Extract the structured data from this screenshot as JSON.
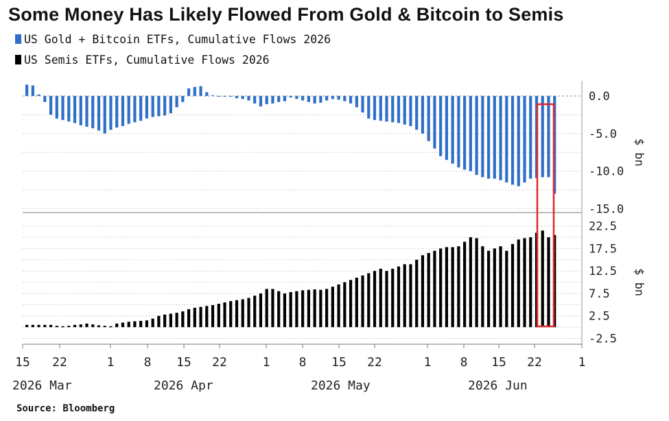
{
  "title": "Some Money Has Likely Flowed From Gold & Bitcoin to Semis",
  "legend": [
    {
      "label": "US Gold + Bitcoin ETFs, Cumulative Flows 2026",
      "color": "#2f6fc8"
    },
    {
      "label": "US Semis ETFs, Cumulative Flows 2026",
      "color": "#000000"
    }
  ],
  "source": "Source: Bloomberg",
  "colors": {
    "gold_btc": "#2f6fc8",
    "semis": "#000000",
    "highlight_box": "#e0262b",
    "grid": "#9a9a9a"
  },
  "chart_data": [
    {
      "type": "bar",
      "panel": "top",
      "series": [
        {
          "name": "US Gold + Bitcoin ETFs, Cumulative Flows 2026",
          "values": [
            1.5,
            1.4,
            0.2,
            -0.8,
            -2.5,
            -3.0,
            -3.2,
            -3.4,
            -3.6,
            -3.9,
            -4.1,
            -4.3,
            -4.6,
            -5.0,
            -4.5,
            -4.2,
            -4.0,
            -3.7,
            -3.5,
            -3.3,
            -3.0,
            -2.8,
            -2.7,
            -2.6,
            -2.3,
            -1.5,
            -0.8,
            1.0,
            1.2,
            1.3,
            0.5,
            0.1,
            -0.1,
            -0.1,
            -0.1,
            -0.3,
            -0.4,
            -0.6,
            -1.0,
            -1.4,
            -1.1,
            -1.0,
            -0.8,
            -0.7,
            -0.2,
            -0.4,
            -0.6,
            -0.8,
            -1.0,
            -0.9,
            -0.6,
            -0.4,
            -0.5,
            -0.7,
            -1.0,
            -1.5,
            -2.2,
            -3.0,
            -3.2,
            -3.3,
            -3.4,
            -3.5,
            -3.6,
            -3.8,
            -4.0,
            -4.5,
            -5.0,
            -6.0,
            -7.0,
            -8.0,
            -8.5,
            -9.0,
            -9.5,
            -9.8,
            -10.0,
            -10.5,
            -10.8,
            -11.0,
            -11.0,
            -11.2,
            -11.5,
            -11.8,
            -12.0,
            -11.5,
            -11.0,
            -10.9,
            -10.8,
            -10.8,
            -13.0
          ]
        }
      ],
      "ylim": [
        -15.5,
        2.0
      ],
      "yticks": [
        "0.0",
        "-5.0",
        "-10.0",
        "-15.0"
      ],
      "ylabel": "$ bn"
    },
    {
      "type": "bar",
      "panel": "bottom",
      "series": [
        {
          "name": "US Semis ETFs, Cumulative Flows 2026",
          "values": [
            0.5,
            0.5,
            0.5,
            0.5,
            0.5,
            0.3,
            0.2,
            0.3,
            0.5,
            0.6,
            0.8,
            0.6,
            0.4,
            0.3,
            0.2,
            0.8,
            1.0,
            1.2,
            1.3,
            1.4,
            1.5,
            1.9,
            2.5,
            2.8,
            3.0,
            3.2,
            3.5,
            4.0,
            4.3,
            4.5,
            4.7,
            4.9,
            5.2,
            5.5,
            5.8,
            6.0,
            6.2,
            6.5,
            7.0,
            7.5,
            8.5,
            8.5,
            8.0,
            7.5,
            7.8,
            8.0,
            8.2,
            8.3,
            8.4,
            8.3,
            8.5,
            9.0,
            9.5,
            10.0,
            10.5,
            11.0,
            11.5,
            12.0,
            12.5,
            13.0,
            12.5,
            13.0,
            13.5,
            14.0,
            14.0,
            15.0,
            16.0,
            16.5,
            17.0,
            17.5,
            17.8,
            17.8,
            18.0,
            19.0,
            20.0,
            19.8,
            18.0,
            17.0,
            17.5,
            18.0,
            17.0,
            18.5,
            19.5,
            19.8,
            20.0,
            21.0,
            21.5,
            20.0,
            20.5
          ]
        }
      ],
      "ylim": [
        -3.8,
        25.5
      ],
      "yticks": [
        "22.5",
        "17.5",
        "12.5",
        "7.5",
        "2.5",
        "-2.5"
      ],
      "ylabel": "$ bn"
    }
  ],
  "x_axis": {
    "tick_labels": [
      "15",
      "22",
      "1",
      "8",
      "15",
      "22",
      "1",
      "8",
      "15",
      "22",
      "1",
      "8",
      "15",
      "22",
      "1"
    ],
    "month_labels": [
      "2026 Mar",
      "2026 Apr",
      "2026 May",
      "2026 Jun"
    ]
  },
  "highlight": {
    "description": "last bar of each series boxed in red"
  }
}
